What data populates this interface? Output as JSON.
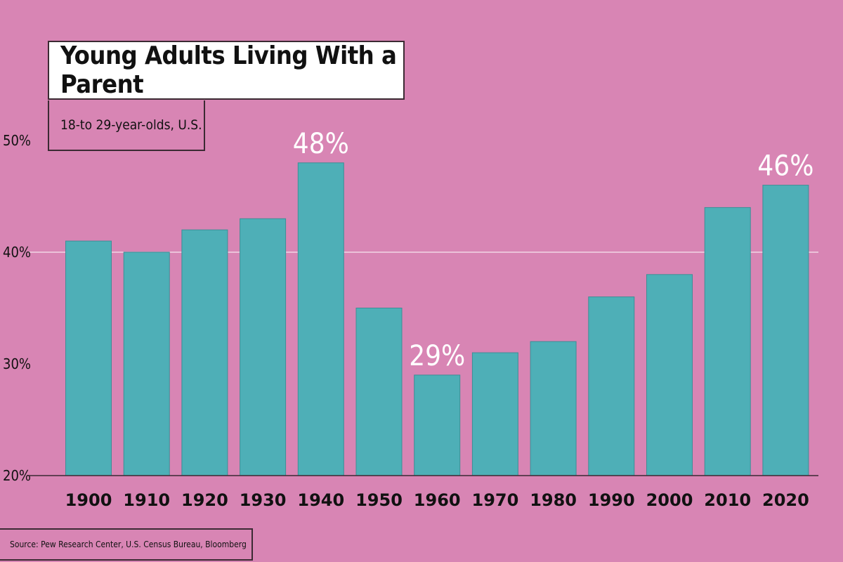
{
  "chart_data": {
    "type": "bar",
    "title": "Young Adults Living With a Parent",
    "subtitle": "18-to 29-year-olds, U.S.",
    "categories": [
      "1900",
      "1910",
      "1920",
      "1930",
      "1940",
      "1950",
      "1960",
      "1970",
      "1980",
      "1990",
      "2000",
      "2010",
      "2020"
    ],
    "values": [
      41,
      40,
      42,
      43,
      48,
      35,
      29,
      31,
      32,
      36,
      38,
      44,
      46
    ],
    "data_labels": [
      {
        "category": "1940",
        "text": "48%"
      },
      {
        "category": "1960",
        "text": "29%"
      },
      {
        "category": "2020",
        "text": "46%"
      }
    ],
    "y_ticks": [
      {
        "value": 20,
        "label": "20%"
      },
      {
        "value": 30,
        "label": "30%"
      },
      {
        "value": 40,
        "label": "40%"
      },
      {
        "value": 50,
        "label": "50%"
      }
    ],
    "ylim": [
      20,
      50
    ],
    "gridlines": [
      40
    ],
    "xlabel": "",
    "ylabel": "",
    "source": "Source: Pew Research Center, U.S. Census Bureau, Bloomberg",
    "colors": {
      "background": "#d885b4",
      "bar": "#4eafb7",
      "bar_edge": "#3c8f96",
      "label": "#ffffff",
      "axis_text": "#111111"
    }
  }
}
